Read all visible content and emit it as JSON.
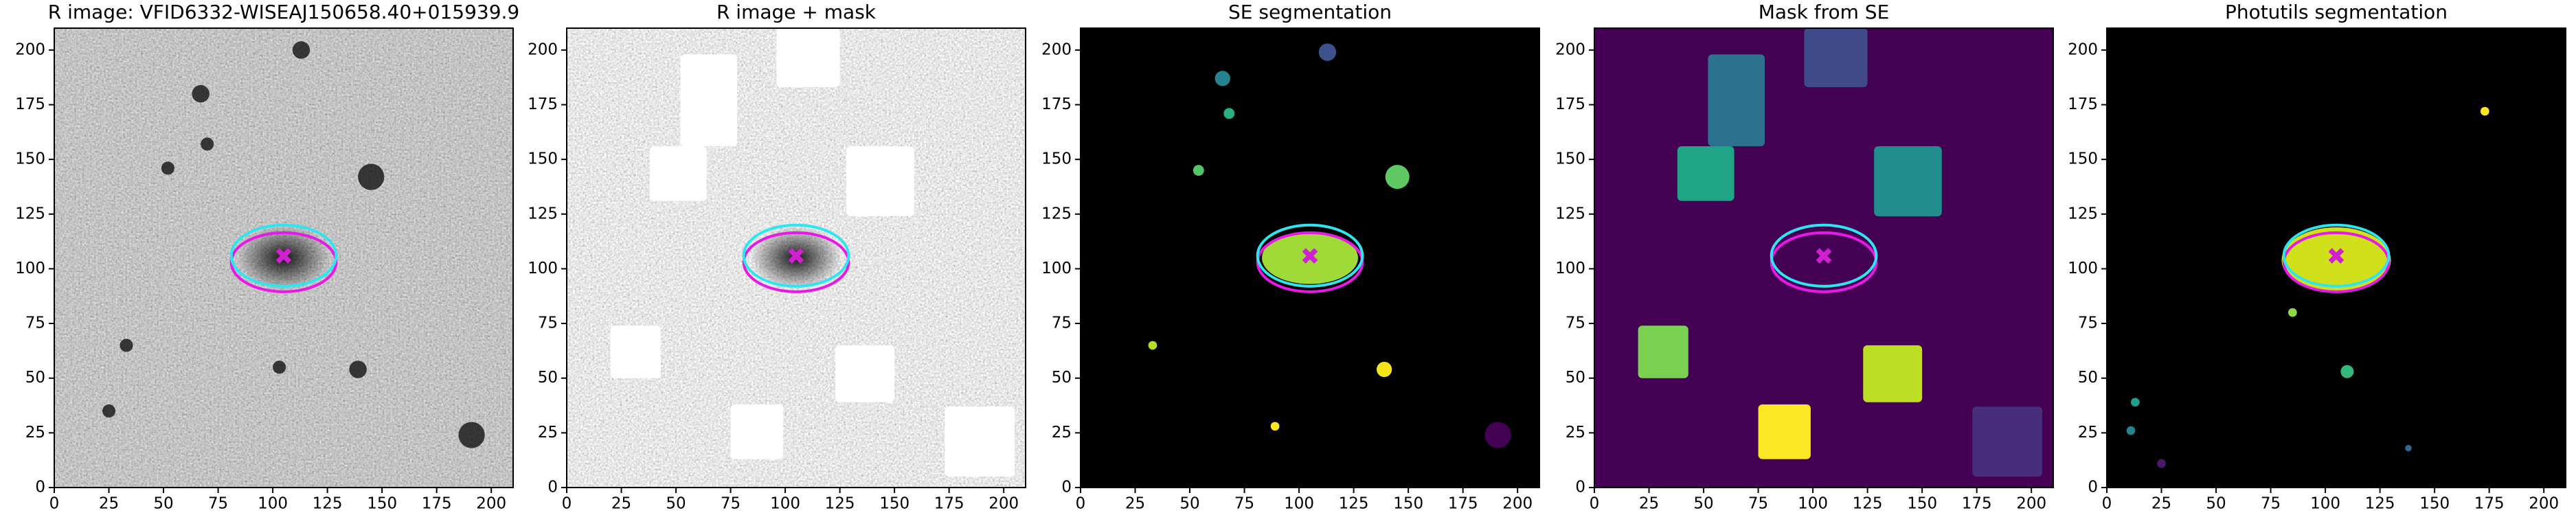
{
  "chart_data": [
    {
      "type": "image",
      "title": "R image: VFID6332-WISEAJ150658.40+015939.9",
      "xlim": [
        0,
        210
      ],
      "ylim": [
        0,
        210
      ],
      "xticks": [
        0,
        25,
        50,
        75,
        100,
        125,
        150,
        175,
        200
      ],
      "yticks": [
        0,
        25,
        50,
        75,
        100,
        125,
        150,
        175,
        200
      ]
    },
    {
      "type": "image",
      "title": "R image + mask",
      "xlim": [
        0,
        210
      ],
      "ylim": [
        0,
        210
      ],
      "xticks": [
        0,
        25,
        50,
        75,
        100,
        125,
        150,
        175,
        200
      ],
      "yticks": [
        0,
        25,
        50,
        75,
        100,
        125,
        150,
        175,
        200
      ]
    },
    {
      "type": "image",
      "title": "SE segmentation",
      "xlim": [
        0,
        210
      ],
      "ylim": [
        0,
        210
      ],
      "xticks": [
        0,
        25,
        50,
        75,
        100,
        125,
        150,
        175,
        200
      ],
      "yticks": [
        0,
        25,
        50,
        75,
        100,
        125,
        150,
        175,
        200
      ]
    },
    {
      "type": "image",
      "title": "Mask from SE",
      "xlim": [
        0,
        210
      ],
      "ylim": [
        0,
        210
      ],
      "xticks": [
        0,
        25,
        50,
        75,
        100,
        125,
        150,
        175,
        200
      ],
      "yticks": [
        0,
        25,
        50,
        75,
        100,
        125,
        150,
        175,
        200
      ]
    },
    {
      "type": "image",
      "title": "Photutils segmentation",
      "xlim": [
        0,
        210
      ],
      "ylim": [
        0,
        210
      ],
      "xticks": [
        0,
        25,
        50,
        75,
        100,
        125,
        150,
        175,
        200
      ],
      "yticks": [
        0,
        25,
        50,
        75,
        100,
        125,
        150,
        175,
        200
      ]
    }
  ]
}
